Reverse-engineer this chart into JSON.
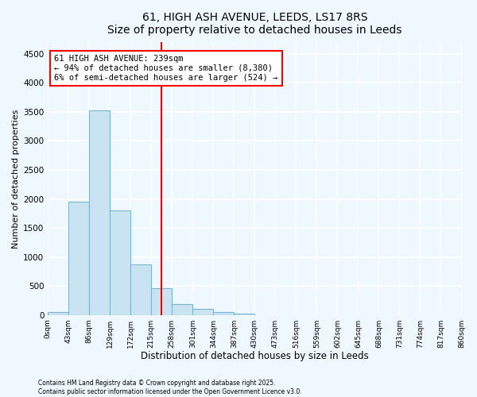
{
  "title": "61, HIGH ASH AVENUE, LEEDS, LS17 8RS",
  "subtitle": "Size of property relative to detached houses in Leeds",
  "xlabel": "Distribution of detached houses by size in Leeds",
  "ylabel": "Number of detached properties",
  "bin_labels": [
    "0sqm",
    "43sqm",
    "86sqm",
    "129sqm",
    "172sqm",
    "215sqm",
    "258sqm",
    "301sqm",
    "344sqm",
    "387sqm",
    "430sqm",
    "473sqm",
    "516sqm",
    "559sqm",
    "602sqm",
    "645sqm",
    "688sqm",
    "731sqm",
    "774sqm",
    "817sqm",
    "860sqm"
  ],
  "bar_values": [
    50,
    1950,
    3520,
    1800,
    870,
    455,
    185,
    100,
    50,
    20,
    0,
    0,
    0,
    0,
    0,
    0,
    0,
    0,
    0,
    0
  ],
  "bar_color": "#c9e4f0",
  "bar_edge_color": "#7ab6d4",
  "vline_x": 5.5,
  "vline_color": "red",
  "annotation_title": "61 HIGH ASH AVENUE: 239sqm",
  "annotation_line1": "← 94% of detached houses are smaller (8,380)",
  "annotation_line2": "6% of semi-detached houses are larger (524) →",
  "ylim": [
    0,
    4700
  ],
  "yticks": [
    0,
    500,
    1000,
    1500,
    2000,
    2500,
    3000,
    3500,
    4000,
    4500
  ],
  "footer1": "Contains HM Land Registry data © Crown copyright and database right 2025.",
  "footer2": "Contains public sector information licensed under the Open Government Licence v3.0.",
  "bg_color": "#f0f8ff",
  "plot_bg_color": "#f0f8ff",
  "grid_color": "#d0e8f4",
  "title_fontsize": 11,
  "subtitle_fontsize": 9.5
}
